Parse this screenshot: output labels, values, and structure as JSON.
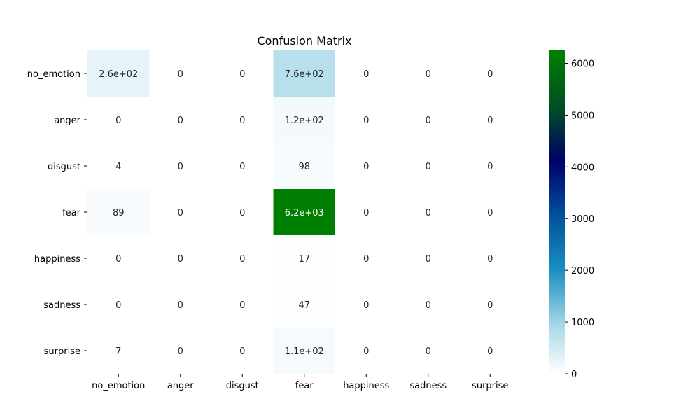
{
  "chart_data": {
    "type": "heatmap",
    "title": "Confusion Matrix",
    "xlabel": "",
    "ylabel": "",
    "row_labels": [
      "no_emotion",
      "anger",
      "disgust",
      "fear",
      "happiness",
      "sadness",
      "surprise"
    ],
    "col_labels": [
      "no_emotion",
      "anger",
      "disgust",
      "fear",
      "happiness",
      "sadness",
      "surprise"
    ],
    "values": [
      [
        260,
        0,
        0,
        760,
        0,
        0,
        0
      ],
      [
        0,
        0,
        0,
        120,
        0,
        0,
        0
      ],
      [
        4,
        0,
        0,
        98,
        0,
        0,
        0
      ],
      [
        89,
        0,
        0,
        6200,
        0,
        0,
        0
      ],
      [
        0,
        0,
        0,
        17,
        0,
        0,
        0
      ],
      [
        0,
        0,
        0,
        47,
        0,
        0,
        0
      ],
      [
        7,
        0,
        0,
        110,
        0,
        0,
        0
      ]
    ],
    "annotations": [
      [
        "2.6e+02",
        "0",
        "0",
        "7.6e+02",
        "0",
        "0",
        "0"
      ],
      [
        "0",
        "0",
        "0",
        "1.2e+02",
        "0",
        "0",
        "0"
      ],
      [
        "4",
        "0",
        "0",
        "98",
        "0",
        "0",
        "0"
      ],
      [
        "89",
        "0",
        "0",
        "6.2e+03",
        "0",
        "0",
        "0"
      ],
      [
        "0",
        "0",
        "0",
        "17",
        "0",
        "0",
        "0"
      ],
      [
        "0",
        "0",
        "0",
        "47",
        "0",
        "0",
        "0"
      ],
      [
        "7",
        "0",
        "0",
        "1.1e+02",
        "0",
        "0",
        "0"
      ]
    ],
    "colorbar": {
      "range": [
        0,
        6250
      ],
      "ticks": [
        0,
        1000,
        2000,
        3000,
        4000,
        5000,
        6000
      ],
      "colormap": "ocean_r",
      "colors": [
        "#ffffff",
        "#a6d8e8",
        "#1a8fbf",
        "#004d99",
        "#000066",
        "#004d26",
        "#008000"
      ],
      "stops": [
        0,
        0.15,
        0.32,
        0.5,
        0.66,
        0.82,
        1.0
      ]
    },
    "grid": false
  }
}
